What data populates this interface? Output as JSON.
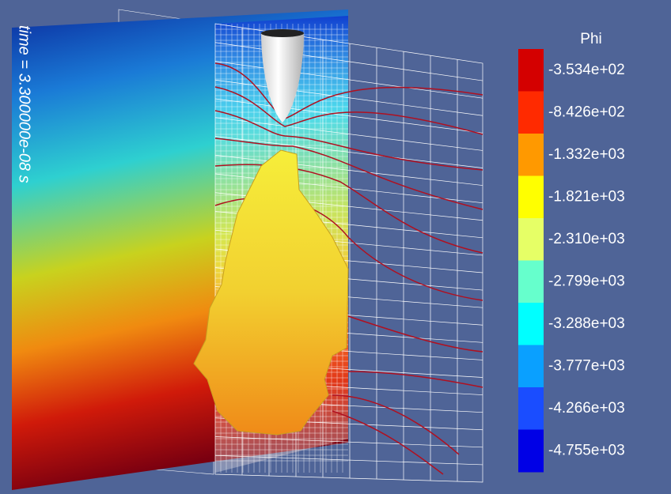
{
  "time_label": "time = 3.300000e-08 s",
  "legend": {
    "title": "Phi",
    "entries": [
      {
        "label": "-3.534e+02",
        "color": "#d40000"
      },
      {
        "label": "-8.426e+02",
        "color": "#ff2a00"
      },
      {
        "label": "-1.332e+03",
        "color": "#ff9900"
      },
      {
        "label": "-1.821e+03",
        "color": "#ffff00"
      },
      {
        "label": "-2.310e+03",
        "color": "#e6ff66"
      },
      {
        "label": "-2.799e+03",
        "color": "#66ffcc"
      },
      {
        "label": "-3.288e+03",
        "color": "#00ffff"
      },
      {
        "label": "-3.777e+03",
        "color": "#0aa0ff"
      },
      {
        "label": "-4.266e+03",
        "color": "#1a4dff"
      },
      {
        "label": "-4.755e+03",
        "color": "#0000e6"
      }
    ]
  }
}
